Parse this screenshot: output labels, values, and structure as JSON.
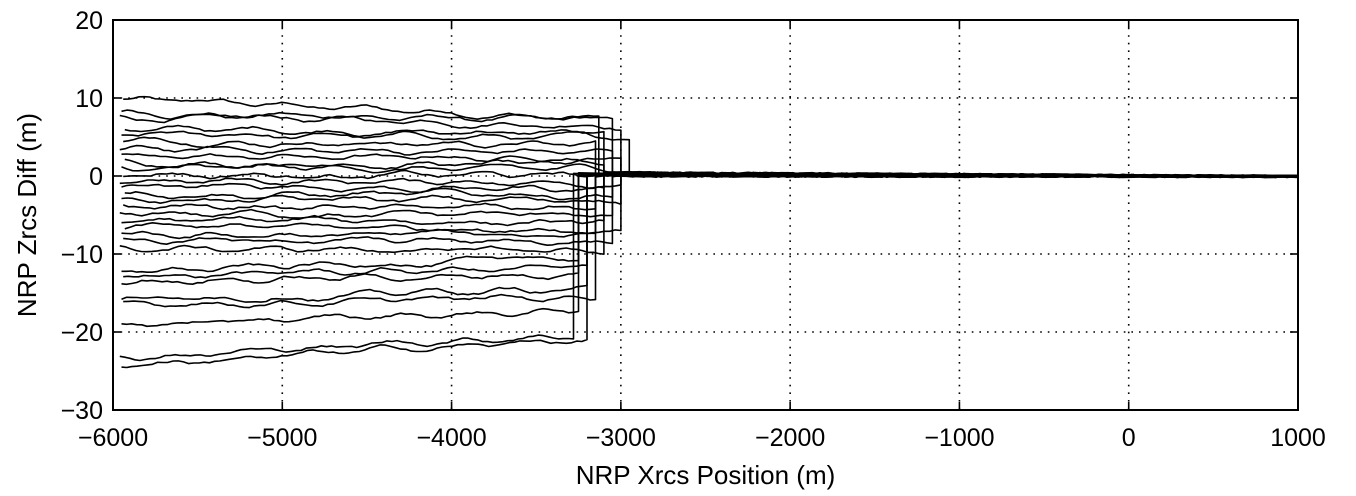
{
  "chart_data": {
    "type": "line",
    "title": "",
    "xlabel": "NRP Xrcs Position (m)",
    "ylabel": "NRP Zrcs Diff (m)",
    "xlim": [
      -6000,
      1000
    ],
    "ylim": [
      -30,
      20
    ],
    "xticks": [
      -6000,
      -5000,
      -4000,
      -3000,
      -2000,
      -1000,
      0,
      1000
    ],
    "yticks": [
      -30,
      -20,
      -10,
      0,
      10,
      20
    ],
    "xtick_labels": [
      "−6000",
      "−5000",
      "−4000",
      "−3000",
      "−2000",
      "−1000",
      "0",
      "1000"
    ],
    "ytick_labels": [
      "−30",
      "−20",
      "−10",
      "0",
      "10",
      "20"
    ],
    "grid": true,
    "line_color": "#000000",
    "converged": {
      "x_range": [
        -2950,
        1000
      ],
      "y_value": 0.2,
      "spread": 0.7
    },
    "series": [
      {
        "x_start": -5940,
        "x_end": -3130,
        "y_start": 9.8,
        "y_end": 7.4
      },
      {
        "x_start": -5950,
        "x_end": -3050,
        "y_start": 8.2,
        "y_end": 7.0
      },
      {
        "x_start": -5960,
        "x_end": -3000,
        "y_start": 7.6,
        "y_end": 6.6
      },
      {
        "x_start": -5930,
        "x_end": -3100,
        "y_start": 6.0,
        "y_end": 5.5
      },
      {
        "x_start": -5950,
        "x_end": -2950,
        "y_start": 5.3,
        "y_end": 4.8
      },
      {
        "x_start": -5940,
        "x_end": -3150,
        "y_start": 4.6,
        "y_end": 4.0
      },
      {
        "x_start": -5960,
        "x_end": -3050,
        "y_start": 3.4,
        "y_end": 3.0
      },
      {
        "x_start": -5950,
        "x_end": -3000,
        "y_start": 2.5,
        "y_end": 2.2
      },
      {
        "x_start": -5930,
        "x_end": -3100,
        "y_start": 1.8,
        "y_end": 1.5
      },
      {
        "x_start": -5950,
        "x_end": -2980,
        "y_start": 1.0,
        "y_end": 0.8
      },
      {
        "x_start": -5940,
        "x_end": -3050,
        "y_start": 0.2,
        "y_end": 0.0
      },
      {
        "x_start": -5960,
        "x_end": -3000,
        "y_start": -0.6,
        "y_end": -0.8
      },
      {
        "x_start": -5950,
        "x_end": -3100,
        "y_start": -1.4,
        "y_end": -1.6
      },
      {
        "x_start": -5930,
        "x_end": -3050,
        "y_start": -2.2,
        "y_end": -2.5
      },
      {
        "x_start": -5950,
        "x_end": -3000,
        "y_start": -3.0,
        "y_end": -3.2
      },
      {
        "x_start": -5940,
        "x_end": -3150,
        "y_start": -3.9,
        "y_end": -4.2
      },
      {
        "x_start": -5960,
        "x_end": -3050,
        "y_start": -4.8,
        "y_end": -5.0
      },
      {
        "x_start": -5950,
        "x_end": -3100,
        "y_start": -5.7,
        "y_end": -5.9
      },
      {
        "x_start": -5930,
        "x_end": -3000,
        "y_start": -6.5,
        "y_end": -6.8
      },
      {
        "x_start": -5950,
        "x_end": -3150,
        "y_start": -7.4,
        "y_end": -7.6
      },
      {
        "x_start": -5940,
        "x_end": -3050,
        "y_start": -8.2,
        "y_end": -8.5
      },
      {
        "x_start": -5960,
        "x_end": -3100,
        "y_start": -9.3,
        "y_end": -9.6
      },
      {
        "x_start": -5950,
        "x_end": -3250,
        "y_start": -12.3,
        "y_end": -10.5
      },
      {
        "x_start": -5940,
        "x_end": -3200,
        "y_start": -12.8,
        "y_end": -11.8
      },
      {
        "x_start": -5950,
        "x_end": -3250,
        "y_start": -13.5,
        "y_end": -12.6
      },
      {
        "x_start": -5950,
        "x_end": -3200,
        "y_start": -15.8,
        "y_end": -14.5
      },
      {
        "x_start": -5940,
        "x_end": -3150,
        "y_start": -16.4,
        "y_end": -15.6
      },
      {
        "x_start": -5950,
        "x_end": -3250,
        "y_start": -19.3,
        "y_end": -17.2
      },
      {
        "x_start": -5960,
        "x_end": -3280,
        "y_start": -23.3,
        "y_end": -20.3
      },
      {
        "x_start": -5950,
        "x_end": -3200,
        "y_start": -24.2,
        "y_end": -21.0
      }
    ]
  }
}
